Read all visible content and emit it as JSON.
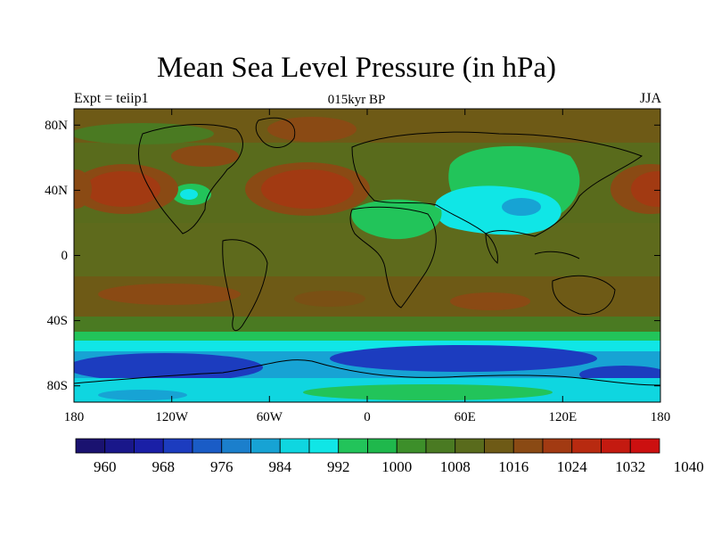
{
  "title": "Mean Sea Level Pressure (in hPa)",
  "subtitle": "015kyr BP",
  "left_label": "Expt = teiip1",
  "right_label": "JJA",
  "map": {
    "lon_ticks": [
      "180",
      "120W",
      "60W",
      "0",
      "60E",
      "120E",
      "180"
    ],
    "lat_ticks": [
      "80N",
      "40N",
      "0",
      "40S",
      "80S"
    ]
  },
  "colorbar": {
    "labels": [
      "960",
      "968",
      "976",
      "984",
      "992",
      "1000",
      "1008",
      "1016",
      "1024",
      "1032",
      "1040"
    ],
    "colors": [
      "#1a1270",
      "#19178a",
      "#1a1fa6",
      "#1c3cbf",
      "#1a5cc6",
      "#1b7fcc",
      "#17a3d4",
      "#0fd6e0",
      "#10e6e6",
      "#22c45a",
      "#1fb84c",
      "#3d8f2a",
      "#4a7a22",
      "#596b1c",
      "#6e5a16",
      "#8a4a14",
      "#a23a12",
      "#b82a10",
      "#c41a10",
      "#cc1010"
    ]
  }
}
